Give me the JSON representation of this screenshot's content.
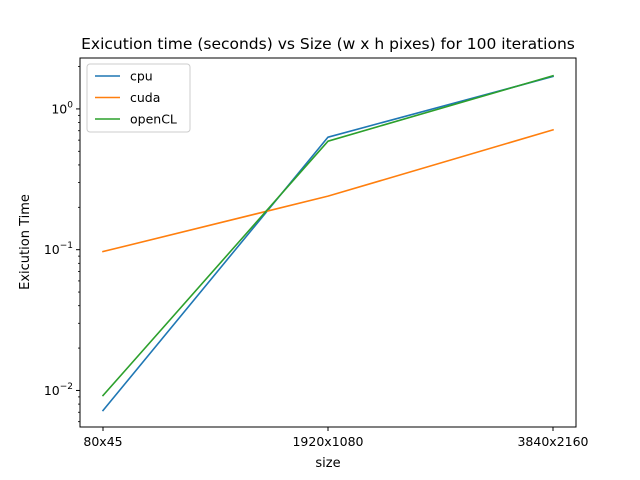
{
  "chart_data": {
    "type": "line",
    "title": "Exicution time (seconds) vs Size (w x h pixes) for 100 iterations",
    "xlabel": "size",
    "ylabel": "Exicution Time",
    "yscale": "log",
    "ylim": [
      0.0055,
      2.3
    ],
    "categories": [
      "80x45",
      "1920x1080",
      "3840x2160"
    ],
    "y_ticks": [
      {
        "value": 0.01,
        "base": "10",
        "exp": "−2"
      },
      {
        "value": 0.1,
        "base": "10",
        "exp": "−1"
      },
      {
        "value": 1,
        "base": "10",
        "exp": "0"
      }
    ],
    "series": [
      {
        "name": "cpu",
        "color": "#1f77b4",
        "values": [
          0.0072,
          0.63,
          1.7
        ]
      },
      {
        "name": "cuda",
        "color": "#ff7f0e",
        "values": [
          0.097,
          0.24,
          0.71
        ]
      },
      {
        "name": "openCL",
        "color": "#2ca02c",
        "values": [
          0.0092,
          0.59,
          1.72
        ]
      }
    ],
    "legend": "upper-left",
    "grid": false
  }
}
